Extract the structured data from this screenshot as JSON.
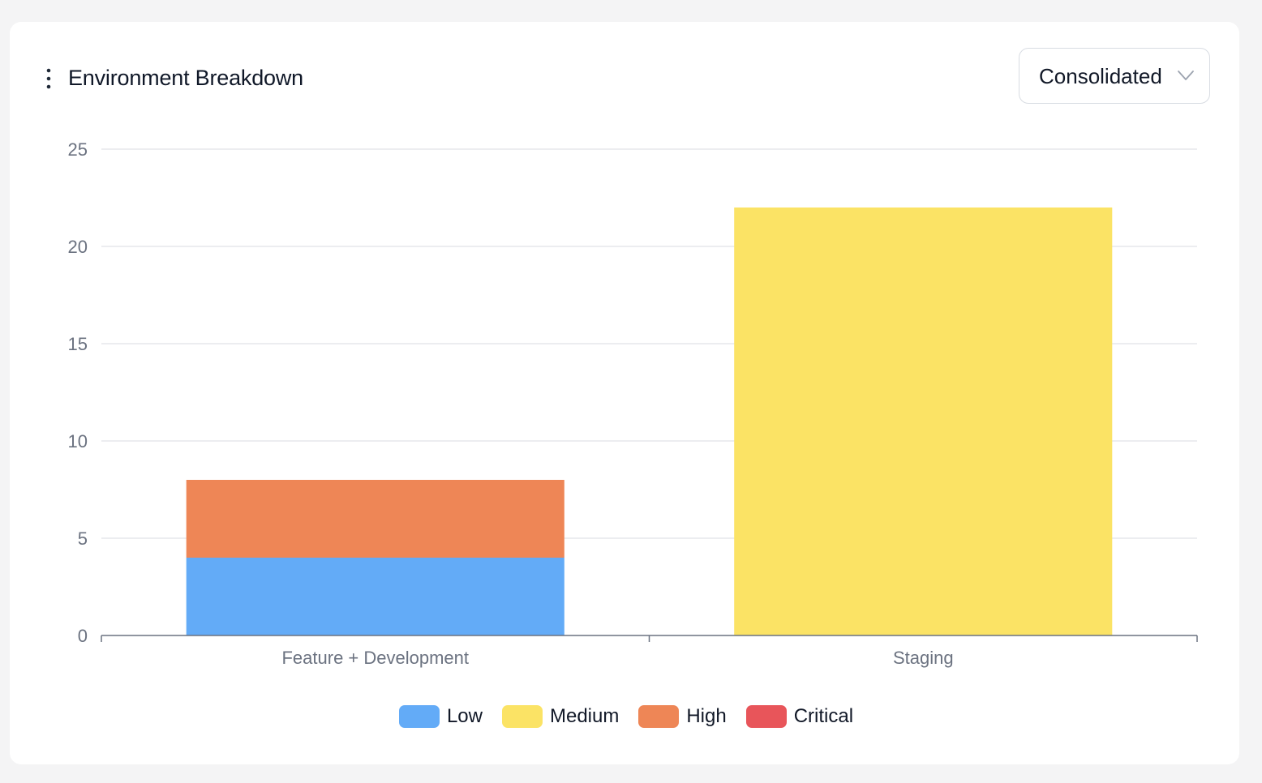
{
  "card": {
    "title": "Environment Breakdown",
    "view_select": {
      "selected": "Consolidated"
    },
    "icons": {
      "menu": "vertical-dots-icon",
      "dropdown": "chevron-down-icon"
    }
  },
  "chart_data": {
    "type": "bar",
    "stacked": true,
    "title": "",
    "xlabel": "",
    "ylabel": "",
    "ylim": [
      0,
      25
    ],
    "yticks": [
      0,
      5,
      10,
      15,
      20,
      25
    ],
    "grid": true,
    "legend_position": "bottom",
    "categories": [
      "Feature + Development",
      "Staging"
    ],
    "series": [
      {
        "name": "Low",
        "color": "#63abf7",
        "values": [
          4,
          0
        ]
      },
      {
        "name": "Medium",
        "color": "#fbe365",
        "values": [
          0,
          22
        ]
      },
      {
        "name": "High",
        "color": "#ee8656",
        "values": [
          4,
          0
        ]
      },
      {
        "name": "Critical",
        "color": "#e8555a",
        "values": [
          0,
          0
        ]
      }
    ]
  }
}
